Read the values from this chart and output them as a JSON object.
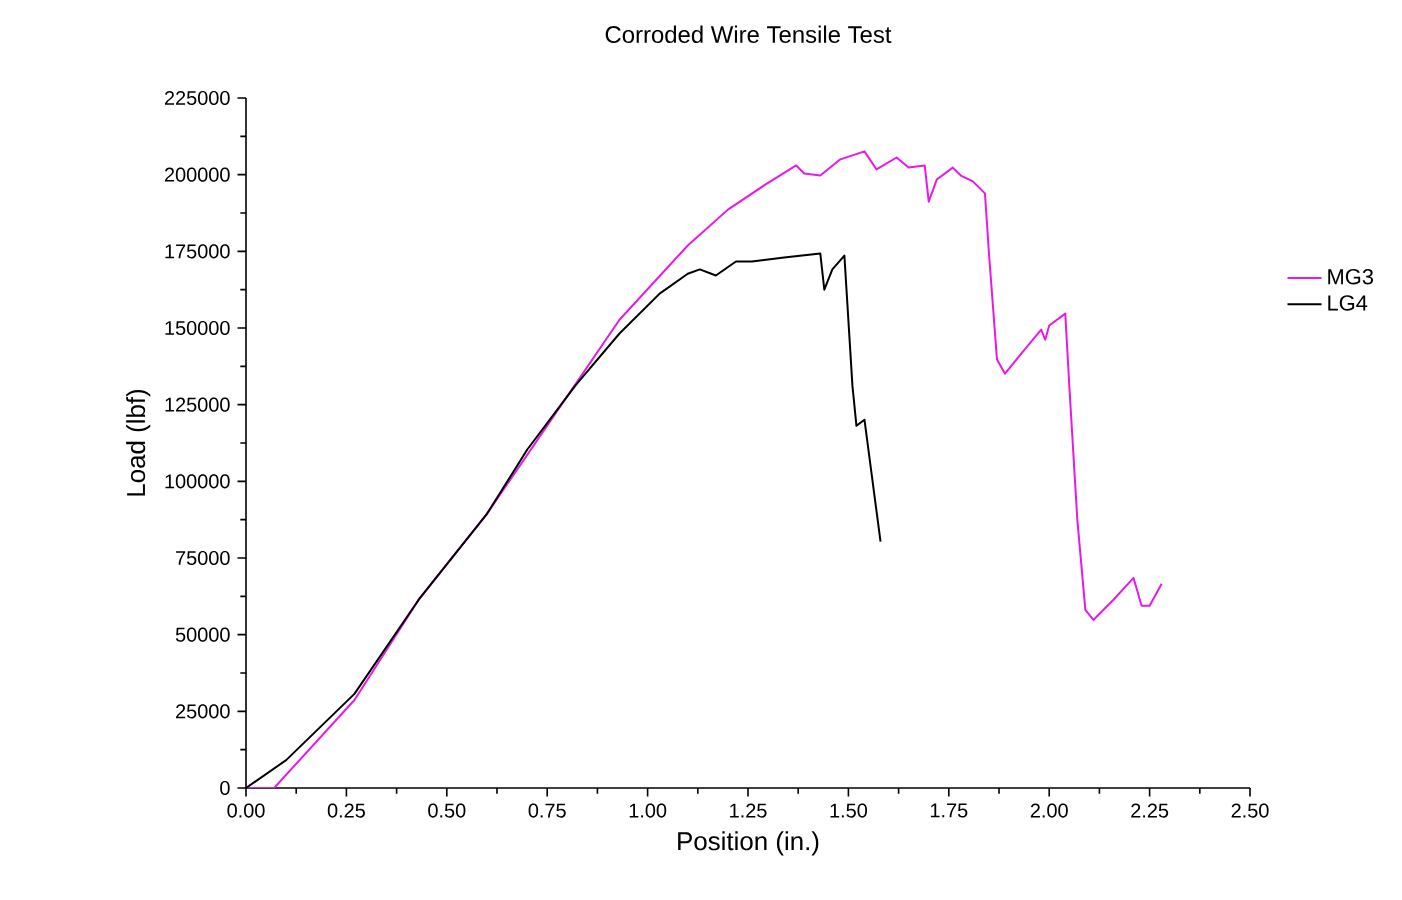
{
  "chart_data": {
    "type": "line",
    "title": "Corroded Wire Tensile Test",
    "xlabel": "Position (in.)",
    "ylabel": "Load (lbf)",
    "xlim": [
      0,
      2.5
    ],
    "xticks": [
      {
        "value": 0,
        "label": "0.00"
      },
      {
        "value": 0.25,
        "label": "0.25"
      },
      {
        "value": 0.5,
        "label": "0.50"
      },
      {
        "value": 0.75,
        "label": "0.75"
      },
      {
        "value": 1,
        "label": "1.00"
      },
      {
        "value": 1.25,
        "label": "1.25"
      },
      {
        "value": 1.5,
        "label": "1.50"
      },
      {
        "value": 1.75,
        "label": "1.75"
      },
      {
        "value": 2,
        "label": "2.00"
      },
      {
        "value": 2.25,
        "label": "2.25"
      },
      {
        "value": 2.5,
        "label": "2.50"
      }
    ],
    "ylim": [
      0,
      225000
    ],
    "yticks": [
      0,
      25000,
      50000,
      75000,
      100000,
      125000,
      150000,
      175000,
      200000,
      225000
    ],
    "grid": false,
    "legend": "right",
    "marker": "none",
    "line_style": "solid",
    "series": [
      {
        "name": "MG3",
        "color": "#e619e6",
        "x": [
          0,
          0.07,
          0.27,
          0.43,
          0.6,
          0.77,
          0.93,
          1.1,
          1.2,
          1.29,
          1.37,
          1.39,
          1.43,
          1.48,
          1.54,
          1.57,
          1.62,
          1.65,
          1.69,
          1.7,
          1.72,
          1.76,
          1.78,
          1.81,
          1.84,
          1.85,
          1.87,
          1.89,
          1.93,
          1.98,
          1.99,
          2.0,
          2.04,
          2.05,
          2.07,
          2.09,
          2.11,
          2.16,
          2.21,
          2.23,
          2.25,
          2.28
        ],
        "values": [
          0,
          0,
          28700,
          61400,
          89400,
          122000,
          152700,
          176900,
          188600,
          196500,
          203000,
          200400,
          199700,
          205000,
          207600,
          201700,
          205600,
          202300,
          203000,
          191200,
          198400,
          202300,
          199700,
          197800,
          193900,
          174300,
          139700,
          135100,
          141600,
          149500,
          146200,
          150800,
          154700,
          131200,
          87500,
          58100,
          54800,
          61400,
          68500,
          59400,
          59400,
          66600
        ]
      },
      {
        "name": "LG4",
        "color": "#000000",
        "x": [
          0,
          0.1,
          0.27,
          0.43,
          0.6,
          0.7,
          0.82,
          0.93,
          1.03,
          1.1,
          1.13,
          1.17,
          1.22,
          1.26,
          1.34,
          1.43,
          1.44,
          1.46,
          1.49,
          1.51,
          1.52,
          1.54,
          1.58
        ],
        "values": [
          0,
          9100,
          30700,
          61400,
          89400,
          110300,
          131200,
          148200,
          161200,
          167700,
          169100,
          167100,
          171700,
          171700,
          173000,
          174300,
          162500,
          169100,
          173600,
          131200,
          118100,
          120100,
          80300
        ]
      }
    ]
  }
}
